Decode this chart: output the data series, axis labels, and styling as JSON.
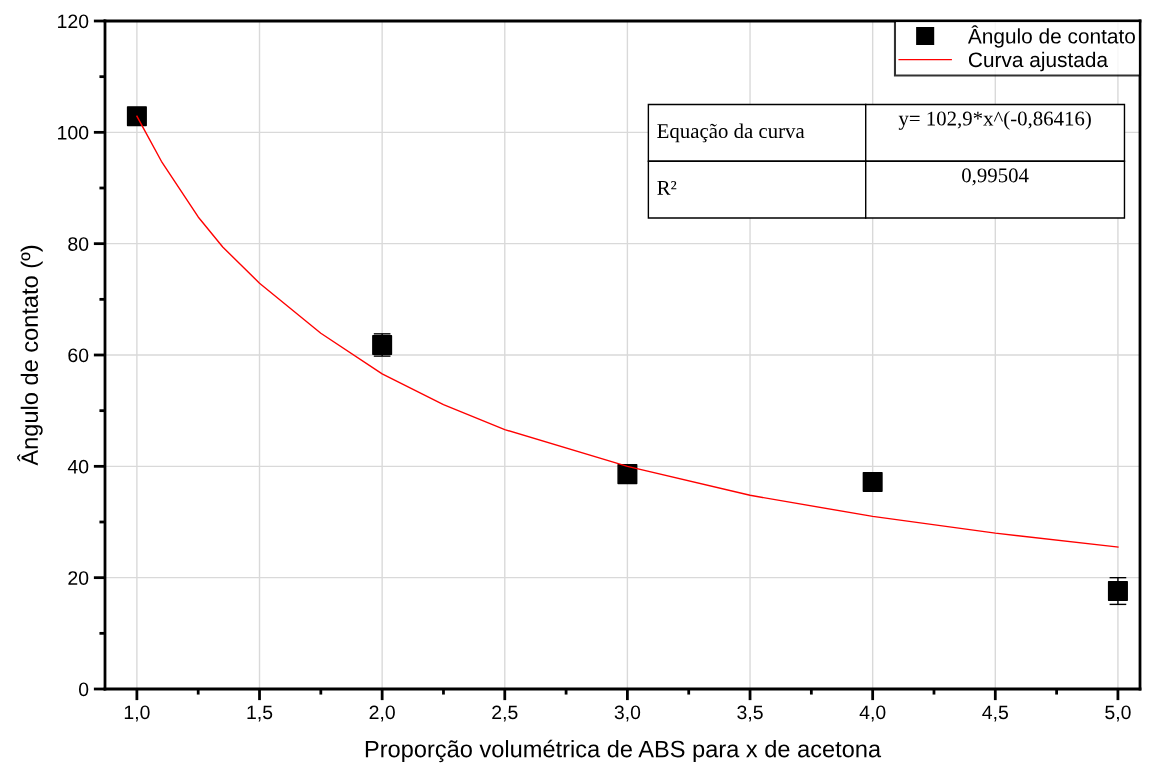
{
  "chart_data": {
    "type": "scatter",
    "xlabel": "Proporção volumétrica de ABS para x de acetona",
    "ylabel": "Ângulo de contato (º)",
    "series": [
      {
        "name": "Ângulo de contato",
        "color": "#000000",
        "marker": "square",
        "x": [
          1,
          2,
          3,
          4,
          5
        ],
        "values": [
          102.9,
          61.8,
          38.6,
          37.2,
          17.6
        ],
        "errors": [
          null,
          2,
          null,
          null,
          2.4
        ]
      },
      {
        "name": "Curva ajustada",
        "type": "line",
        "color": "#ff0000",
        "marker": "none",
        "line_style": "solid",
        "x": [
          1,
          1.1,
          1.25,
          1.35,
          1.5,
          1.75,
          2,
          2.25,
          2.5,
          3,
          3.5,
          4,
          4.5,
          5
        ],
        "values": [
          102.9,
          94.8,
          84.8,
          79.4,
          72.9,
          63.9,
          56.6,
          51.1,
          46.6,
          40.0,
          34.8,
          31.0,
          28.0,
          25.5
        ]
      }
    ],
    "xlim": [
      0.87,
      5.09
    ],
    "ylim": [
      0,
      120
    ],
    "xticks": [
      {
        "value": 1,
        "label": "1,0"
      },
      {
        "value": 1.25,
        "label": null
      },
      {
        "value": 1.5,
        "label": "1,5"
      },
      {
        "value": 1.75,
        "label": null
      },
      {
        "value": 2,
        "label": "2,0"
      },
      {
        "value": 2.25,
        "label": null
      },
      {
        "value": 2.5,
        "label": "2,5"
      },
      {
        "value": 2.75,
        "label": null
      },
      {
        "value": 3,
        "label": "3,0"
      },
      {
        "value": 3.25,
        "label": null
      },
      {
        "value": 3.5,
        "label": "3,5"
      },
      {
        "value": 3.75,
        "label": null
      },
      {
        "value": 4,
        "label": "4,0"
      },
      {
        "value": 4.25,
        "label": null
      },
      {
        "value": 4.5,
        "label": "4,5"
      },
      {
        "value": 4.75,
        "label": null
      },
      {
        "value": 5,
        "label": "5,0"
      }
    ],
    "yticks": [
      0,
      {
        "value": 10,
        "label": null
      },
      20,
      {
        "value": 30,
        "label": null
      },
      40,
      {
        "value": 50,
        "label": null
      },
      60,
      {
        "value": 70,
        "label": null
      },
      80,
      {
        "value": 90,
        "label": null
      },
      100,
      {
        "value": 110,
        "label": null
      },
      120
    ],
    "grid": true,
    "legend": "top right",
    "annotations": [
      "Equação da curva",
      "y= 102,9*x^(-0,86416)",
      "R²",
      "0,99504"
    ]
  }
}
